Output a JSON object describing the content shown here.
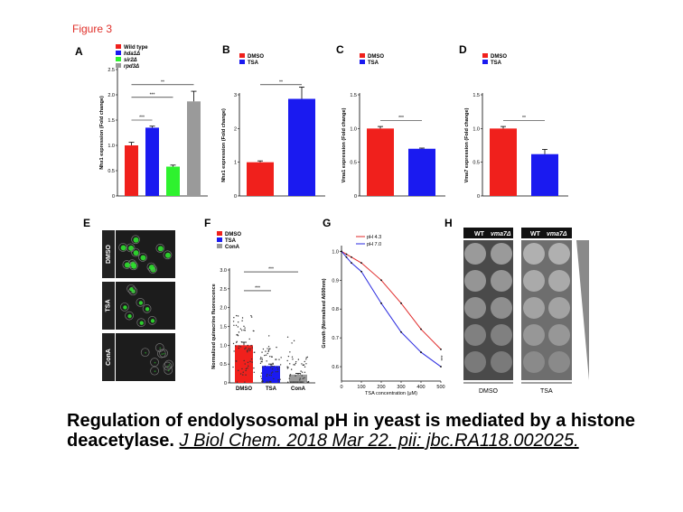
{
  "figure_title": "Figure 3",
  "panels": {
    "A": "A",
    "B": "B",
    "C": "C",
    "D": "D",
    "E": "E",
    "F": "F",
    "G": "G",
    "H": "H"
  },
  "colors": {
    "red": "#f0201c",
    "blue": "#1a1af0",
    "green": "#2ef22e",
    "gray": "#9a9a9a"
  },
  "panel_h": {
    "headers": [
      "WT",
      "vma7Δ",
      "WT",
      "vma7Δ"
    ],
    "bottom_labels": [
      "DMSO",
      "TSA"
    ]
  },
  "panel_e": {
    "rows": [
      "DMSO",
      "TSA",
      "ConA"
    ]
  },
  "caption": {
    "title": "Regulation of endolysosomal pH in yeast is mediated by a histone deacetylase.",
    "citation": "J Biol Chem. 2018 Mar 22. pii: jbc.RA118.002025."
  },
  "chart_data": [
    {
      "panel": "A",
      "type": "bar",
      "ylabel": "Nhx1 expression (Fold change)",
      "ylim": [
        0,
        2.5
      ],
      "yticks": [
        0,
        0.5,
        1.0,
        1.5,
        2.0,
        2.5
      ],
      "yticklabels": [
        "0",
        "0.5",
        "1.0",
        "1.5",
        "2.0",
        "2.5"
      ],
      "series": [
        {
          "name": "Wild type",
          "value": 1.0,
          "error": 0.06,
          "color": "#f0201c"
        },
        {
          "name": "hda1Δ",
          "value": 1.35,
          "error": 0.03,
          "color": "#1a1af0"
        },
        {
          "name": "sir2Δ",
          "value": 0.58,
          "error": 0.03,
          "color": "#2ef22e"
        },
        {
          "name": "rpd3Δ",
          "value": 1.87,
          "error": 0.2,
          "color": "#9a9a9a"
        }
      ],
      "annotations": [
        "***",
        "***",
        "**"
      ]
    },
    {
      "panel": "B",
      "type": "bar",
      "ylabel": "Nhx1 expression (Fold change)",
      "ylim": [
        0,
        3
      ],
      "yticks": [
        0,
        1,
        2,
        3
      ],
      "yticklabels": [
        "0",
        "1",
        "2",
        "3"
      ],
      "series": [
        {
          "name": "DMSO",
          "value": 1.0,
          "error": 0.04,
          "color": "#f0201c"
        },
        {
          "name": "TSA",
          "value": 2.88,
          "error": 0.35,
          "color": "#1a1af0"
        }
      ],
      "annotations": [
        "**"
      ]
    },
    {
      "panel": "C",
      "type": "bar",
      "ylabel": "Vma1 expression (Fold change)",
      "ylim": [
        0,
        1.5
      ],
      "yticks": [
        0,
        0.5,
        1.0,
        1.5
      ],
      "yticklabels": [
        "0",
        "0.5",
        "1.0",
        "1.5"
      ],
      "series": [
        {
          "name": "DMSO",
          "value": 1.0,
          "error": 0.03,
          "color": "#f0201c"
        },
        {
          "name": "TSA",
          "value": 0.7,
          "error": 0.01,
          "color": "#1a1af0"
        }
      ],
      "annotations": [
        "***"
      ]
    },
    {
      "panel": "D",
      "type": "bar",
      "ylabel": "Vma7 expression (Fold change)",
      "ylim": [
        0,
        1.5
      ],
      "yticks": [
        0,
        0.5,
        1.0,
        1.5
      ],
      "yticklabels": [
        "0",
        "0.5",
        "1.0",
        "1.5"
      ],
      "series": [
        {
          "name": "DMSO",
          "value": 1.0,
          "error": 0.03,
          "color": "#f0201c"
        },
        {
          "name": "TSA",
          "value": 0.62,
          "error": 0.07,
          "color": "#1a1af0"
        }
      ],
      "annotations": [
        "**"
      ]
    },
    {
      "panel": "F",
      "type": "bar",
      "ylabel": "Normalized quinacrine fluorescence",
      "ylim": [
        0,
        3.0
      ],
      "yticks": [
        0,
        0.5,
        1.0,
        1.5,
        2.0,
        2.5,
        3.0
      ],
      "yticklabels": [
        "0",
        "0.5",
        "1.0",
        "1.5",
        "2.0",
        "2.5",
        "3.0"
      ],
      "categories": [
        "DMSO",
        "TSA",
        "ConA"
      ],
      "series": [
        {
          "name": "DMSO",
          "value": 1.0,
          "error": 0.08,
          "color": "#f0201c"
        },
        {
          "name": "TSA",
          "value": 0.45,
          "error": 0.05,
          "color": "#1a1af0"
        },
        {
          "name": "ConA",
          "value": 0.22,
          "error": 0.03,
          "color": "#9a9a9a"
        }
      ],
      "annotations": [
        "***",
        "***"
      ]
    },
    {
      "panel": "G",
      "type": "line",
      "ylabel": "Growth (Normalised A600nm)",
      "xlabel": "TSA concentration (μM)",
      "x": [
        0,
        25,
        50,
        100,
        200,
        300,
        400,
        500
      ],
      "xticks": [
        0,
        100,
        200,
        300,
        400,
        500
      ],
      "xticklabels": [
        "0",
        "100",
        "200",
        "300",
        "400",
        "500"
      ],
      "ylim": [
        0.55,
        1.02
      ],
      "yticks": [
        0.6,
        0.7,
        0.8,
        0.9,
        1.0
      ],
      "yticklabels": [
        "0.6",
        "0.7",
        "0.8",
        "0.9",
        "1.0"
      ],
      "series": [
        {
          "name": "pH 4.3",
          "color": "#e02a2a",
          "values": [
            1.0,
            0.99,
            0.98,
            0.96,
            0.9,
            0.82,
            0.73,
            0.66
          ]
        },
        {
          "name": "pH 7.0",
          "color": "#2a2ae0",
          "values": [
            1.0,
            0.98,
            0.96,
            0.93,
            0.82,
            0.72,
            0.65,
            0.6
          ]
        }
      ],
      "annotations": [
        "***"
      ]
    }
  ]
}
